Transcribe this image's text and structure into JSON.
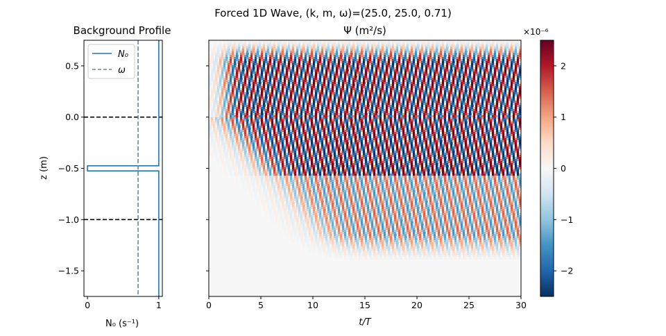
{
  "suptitle": "Forced 1D Wave, (k, m, ω)=(25.0, 25.0, 0.71)",
  "chart_data": [
    {
      "type": "line",
      "title": "Background Profile",
      "xlabel": "N₀ (s⁻¹)",
      "ylabel": "z (m)",
      "xlim": [
        -0.05,
        1.05
      ],
      "ylim": [
        -1.75,
        0.75
      ],
      "xticks": [
        0,
        1
      ],
      "yticks": [
        0.5,
        0.0,
        -0.5,
        -1.0,
        -1.5
      ],
      "ytick_labels": [
        "0.5",
        "0.0",
        "−0.5",
        "−1.0",
        "−1.5"
      ],
      "legend": {
        "position": "upper-left",
        "entries": [
          "N₀",
          "ω"
        ]
      },
      "series": [
        {
          "name": "N₀",
          "color": "#1f77b4",
          "style": "solid",
          "points": [
            [
              1,
              0.75
            ],
            [
              1,
              -0.475
            ],
            [
              0,
              -0.475
            ],
            [
              0,
              -0.525
            ],
            [
              1,
              -0.525
            ],
            [
              1,
              -1.75
            ]
          ]
        },
        {
          "name": "ω",
          "color": "#6b849c",
          "style": "dashed",
          "points": [
            [
              0.71,
              0.75
            ],
            [
              0.71,
              -1.75
            ]
          ]
        }
      ],
      "reference_lines": [
        {
          "axis": "y",
          "value": 0.0,
          "color": "#000000",
          "style": "dashed"
        },
        {
          "axis": "y",
          "value": -1.0,
          "color": "#000000",
          "style": "dashed"
        }
      ]
    },
    {
      "type": "heatmap",
      "title": "Ψ (m²/s)",
      "xlabel": "t/T",
      "ylabel": "",
      "xlim": [
        0,
        30
      ],
      "ylim": [
        -1.75,
        0.75
      ],
      "xticks": [
        0,
        5,
        10,
        15,
        20,
        25,
        30
      ],
      "colormap": "RdBu_r",
      "colorbar": {
        "multiplier": "×10⁻⁶",
        "range": [
          -2.5,
          2.5
        ],
        "ticks": [
          2,
          1,
          0,
          -1,
          -2
        ],
        "tick_labels": [
          "2",
          "1",
          "0",
          "−1",
          "−2"
        ]
      },
      "field": {
        "description": "forced wave pattern: diagonal stripes emanating from z=0 forcing region, propagating downward with time",
        "forcing_z": 0.0,
        "upper_boundary_z": 0.75,
        "interface_z": -0.5,
        "amplitude_upper": 2.5,
        "amplitude_lower": 1.5
      }
    }
  ]
}
